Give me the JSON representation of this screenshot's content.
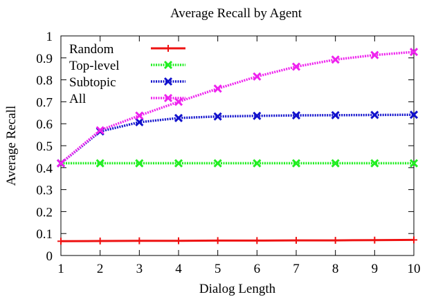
{
  "chart_data": {
    "type": "line",
    "title": "Average Recall by Agent",
    "xlabel": "Dialog Length",
    "ylabel": "Average Recall",
    "x": [
      1,
      2,
      3,
      4,
      5,
      6,
      7,
      8,
      9,
      10
    ],
    "xlim": [
      1,
      10
    ],
    "ylim": [
      0,
      1
    ],
    "xticks": [
      "1",
      "2",
      "3",
      "4",
      "5",
      "6",
      "7",
      "8",
      "9",
      "10"
    ],
    "yticks": [
      {
        "value": 0,
        "label": "0"
      },
      {
        "value": 0.1,
        "label": "0.1"
      },
      {
        "value": 0.2,
        "label": "0.2"
      },
      {
        "value": 0.3,
        "label": "0.3"
      },
      {
        "value": 0.4,
        "label": "0.4"
      },
      {
        "value": 0.5,
        "label": "0.5"
      },
      {
        "value": 0.6,
        "label": "0.6"
      },
      {
        "value": 0.7,
        "label": "0.7"
      },
      {
        "value": 0.8,
        "label": "0.8"
      },
      {
        "value": 0.9,
        "label": "0.9"
      },
      {
        "value": 1,
        "label": "1"
      }
    ],
    "grid": false,
    "legend_position": "top-left",
    "series": [
      {
        "name": "Random",
        "color": "#ee1111",
        "dash": "solid",
        "marker": "plus",
        "values": [
          0.065,
          0.066,
          0.067,
          0.067,
          0.068,
          0.068,
          0.069,
          0.069,
          0.07,
          0.071
        ]
      },
      {
        "name": "Top-level",
        "color": "#22ee22",
        "dash": "dotted",
        "marker": "cross",
        "values": [
          0.42,
          0.42,
          0.42,
          0.42,
          0.42,
          0.42,
          0.42,
          0.42,
          0.42,
          0.42
        ]
      },
      {
        "name": "Subtopic",
        "color": "#1111cc",
        "dash": "dotted",
        "marker": "cross",
        "values": [
          0.42,
          0.565,
          0.607,
          0.626,
          0.633,
          0.636,
          0.638,
          0.639,
          0.64,
          0.641
        ]
      },
      {
        "name": "All",
        "color": "#ee22ee",
        "dash": "dotted",
        "marker": "cross",
        "values": [
          0.42,
          0.57,
          0.637,
          0.7,
          0.76,
          0.815,
          0.86,
          0.892,
          0.913,
          0.927
        ]
      }
    ]
  }
}
